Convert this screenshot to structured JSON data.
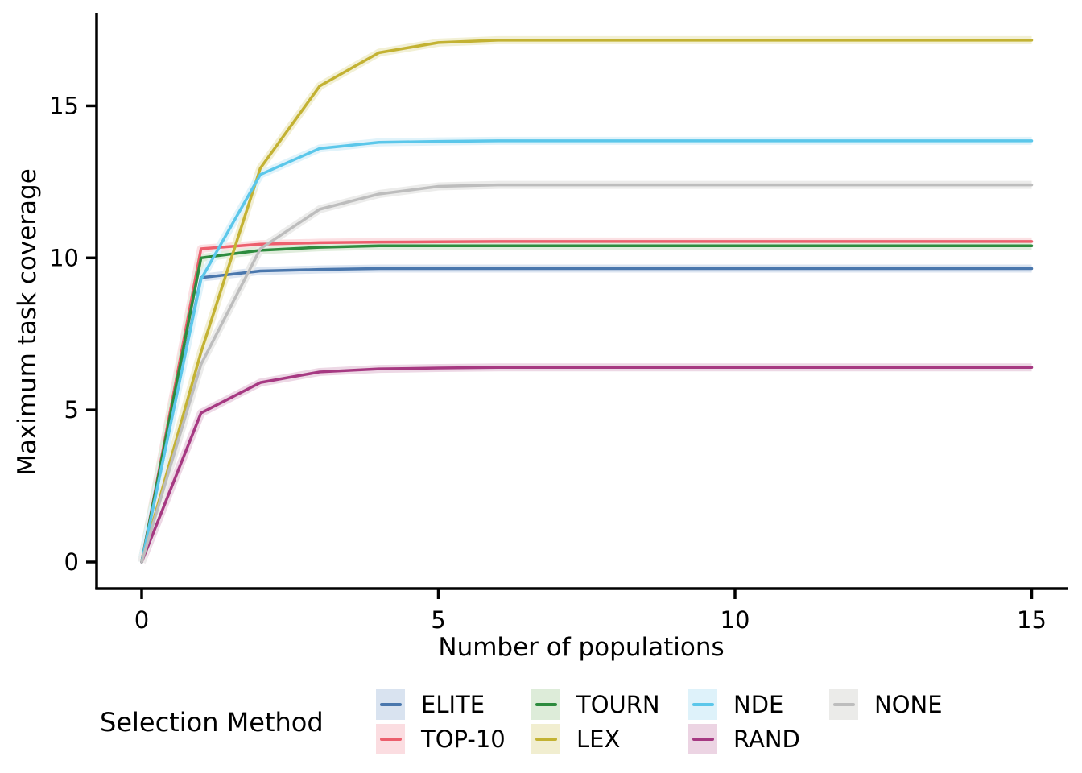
{
  "chart_data": {
    "type": "line",
    "title": "",
    "xlabel": "Number of populations",
    "ylabel": "Maximum task coverage",
    "legend_title": "Selection Method",
    "legend_position": "bottom",
    "grid": false,
    "x": [
      0,
      1,
      2,
      3,
      4,
      5,
      6,
      7,
      8,
      9,
      10,
      11,
      12,
      13,
      14,
      15
    ],
    "x_ticks": [
      0,
      5,
      10,
      15
    ],
    "y_ticks": [
      0,
      5,
      10,
      15
    ],
    "xlim": [
      -0.8,
      15.6
    ],
    "ylim": [
      -0.9,
      18.1
    ],
    "series": [
      {
        "name": "ELITE",
        "color": "#4a77ad",
        "band": "#d9e3f0",
        "values": [
          0,
          9.35,
          9.57,
          9.62,
          9.65,
          9.65,
          9.65,
          9.65,
          9.65,
          9.65,
          9.65,
          9.65,
          9.65,
          9.65,
          9.65,
          9.65
        ]
      },
      {
        "name": "TOP-10",
        "color": "#ec5f6d",
        "band": "#fbdde1",
        "values": [
          0,
          10.3,
          10.45,
          10.5,
          10.52,
          10.53,
          10.54,
          10.54,
          10.54,
          10.54,
          10.54,
          10.54,
          10.54,
          10.54,
          10.54,
          10.54
        ]
      },
      {
        "name": "TOURN",
        "color": "#2d8b3e",
        "band": "#ddecd9",
        "values": [
          0,
          10.0,
          10.25,
          10.35,
          10.4,
          10.4,
          10.4,
          10.4,
          10.4,
          10.4,
          10.4,
          10.4,
          10.4,
          10.4,
          10.4,
          10.4
        ]
      },
      {
        "name": "LEX",
        "color": "#c3b233",
        "band": "#f1eed0",
        "values": [
          0,
          6.9,
          12.95,
          15.65,
          16.75,
          17.08,
          17.16,
          17.16,
          17.16,
          17.16,
          17.16,
          17.16,
          17.16,
          17.16,
          17.16,
          17.16
        ]
      },
      {
        "name": "NDE",
        "color": "#5bc7ea",
        "band": "#def2fa",
        "values": [
          0,
          9.3,
          12.74,
          13.6,
          13.8,
          13.83,
          13.85,
          13.85,
          13.85,
          13.85,
          13.85,
          13.85,
          13.85,
          13.85,
          13.85,
          13.85
        ]
      },
      {
        "name": "RAND",
        "color": "#a63982",
        "band": "#ecd4e3",
        "values": [
          0,
          4.9,
          5.9,
          6.25,
          6.35,
          6.38,
          6.4,
          6.4,
          6.4,
          6.4,
          6.4,
          6.4,
          6.4,
          6.4,
          6.4,
          6.4
        ]
      },
      {
        "name": "NONE",
        "color": "#bdbdbd",
        "band": "#ebebe9",
        "values": [
          0,
          6.5,
          10.3,
          11.6,
          12.1,
          12.35,
          12.4,
          12.4,
          12.4,
          12.4,
          12.4,
          12.4,
          12.4,
          12.4,
          12.4,
          12.4
        ]
      }
    ]
  }
}
